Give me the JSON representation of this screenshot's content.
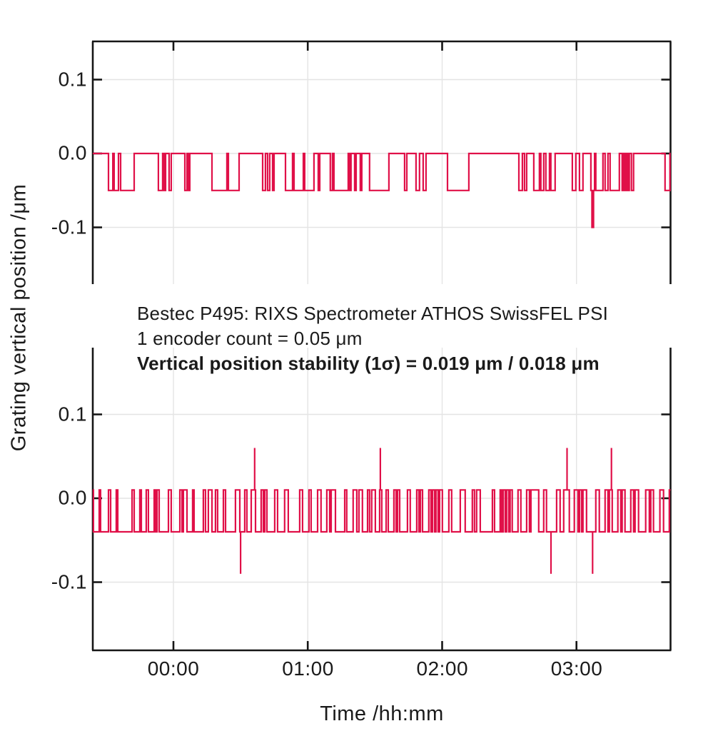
{
  "figure": {
    "y_axis_title": "Grating vertical position /μm",
    "x_axis_title": "Time /hh:mm"
  },
  "annotation": {
    "line1": "Bestec P495: RIXS Spectrometer ATHOS SwissFEL PSI",
    "line2": "1 encoder count = 0.05 μm",
    "line3": "Vertical position stability (1σ) = 0.019 μm / 0.018 μm"
  },
  "chart_data": {
    "type": "line",
    "subtype": "step-telegraph",
    "title": "Bestec P495: RIXS Spectrometer ATHOS SwissFEL PSI",
    "xlabel": "Time /hh:mm",
    "ylabel": "Grating vertical position /μm",
    "x_unit": "hours",
    "x_range": [
      -0.6,
      3.7
    ],
    "grid": true,
    "line_color": "#e01048",
    "grid_color": "#e4e4e4",
    "axis_color": "#161616",
    "x_ticks": [
      {
        "hour": 0,
        "label": "00:00"
      },
      {
        "hour": 1,
        "label": "01:00"
      },
      {
        "hour": 2,
        "label": "02:00"
      },
      {
        "hour": 3,
        "label": "03:00"
      }
    ],
    "panels": [
      {
        "name": "upper",
        "ylim": [
          -0.177,
          0.152
        ],
        "y_ticks": [
          {
            "value": 0.1,
            "label": "0.1"
          },
          {
            "value": 0.0,
            "label": "0.0"
          },
          {
            "value": -0.1,
            "label": "-0.1"
          }
        ],
        "baseline": 0.0,
        "low_level": -0.05,
        "deep_level": -0.1,
        "low_intervals": [
          [
            -0.483,
            -0.451
          ],
          [
            -0.441,
            -0.409
          ],
          [
            -0.393,
            -0.292
          ],
          [
            -0.112,
            -0.08
          ],
          [
            -0.069,
            -0.058
          ],
          [
            -0.032,
            -0.016
          ],
          [
            0.085,
            0.101
          ],
          [
            0.112,
            0.122
          ],
          [
            0.287,
            0.398
          ],
          [
            0.409,
            0.489
          ],
          [
            0.664,
            0.685
          ],
          [
            0.701,
            0.717
          ],
          [
            0.738,
            0.749
          ],
          [
            0.834,
            0.887
          ],
          [
            0.898,
            0.967
          ],
          [
            0.977,
            1.046
          ],
          [
            1.078,
            1.089
          ],
          [
            1.168,
            1.184
          ],
          [
            1.195,
            1.301
          ],
          [
            1.312,
            1.322
          ],
          [
            1.349,
            1.36
          ],
          [
            1.391,
            1.402
          ],
          [
            1.46,
            1.604
          ],
          [
            1.721,
            1.737
          ],
          [
            1.806,
            1.832
          ],
          [
            1.859,
            1.88
          ],
          [
            2.04,
            2.199
          ],
          [
            2.571,
            2.597
          ],
          [
            2.613,
            2.629
          ],
          [
            2.682,
            2.724
          ],
          [
            2.735,
            2.756
          ],
          [
            2.772,
            2.799
          ],
          [
            2.809,
            2.841
          ],
          [
            2.969,
            2.995
          ],
          [
            3.022,
            3.048
          ],
          [
            3.107,
            3.135
          ],
          [
            3.144,
            3.197
          ],
          [
            3.213,
            3.234
          ],
          [
            3.25,
            3.319
          ],
          [
            3.34,
            3.351
          ],
          [
            3.361,
            3.372
          ],
          [
            3.383,
            3.393
          ],
          [
            3.409,
            3.425
          ],
          [
            3.659,
            3.696
          ]
        ],
        "deep_intervals": [
          [
            3.115,
            3.127
          ]
        ],
        "spikes_up": {
          "level": 0,
          "hours": []
        },
        "spikes_down": {
          "level": -0.1,
          "hours": []
        }
      },
      {
        "name": "lower",
        "ylim": [
          -0.18,
          0.18
        ],
        "y_ticks": [
          {
            "value": 0.1,
            "label": "0.1"
          },
          {
            "value": 0.0,
            "label": "0.0"
          },
          {
            "value": -0.1,
            "label": "-0.1"
          }
        ],
        "baseline": 0.01,
        "low_level": -0.04,
        "deep_level": -0.09,
        "low_intervals": [
          [
            -0.595,
            -0.552
          ],
          [
            -0.542,
            -0.483
          ],
          [
            -0.467,
            -0.425
          ],
          [
            -0.414,
            -0.308
          ],
          [
            -0.292,
            -0.25
          ],
          [
            -0.239,
            -0.202
          ],
          [
            -0.186,
            -0.143
          ],
          [
            -0.133,
            -0.122
          ],
          [
            -0.106,
            -0.037
          ],
          [
            -0.016,
            0.048
          ],
          [
            0.064,
            0.074
          ],
          [
            0.101,
            0.143
          ],
          [
            0.154,
            0.223
          ],
          [
            0.239,
            0.26
          ],
          [
            0.287,
            0.313
          ],
          [
            0.329,
            0.372
          ],
          [
            0.388,
            0.462
          ],
          [
            0.494,
            0.531
          ],
          [
            0.547,
            0.579
          ],
          [
            0.611,
            0.653
          ],
          [
            0.669,
            0.68
          ],
          [
            0.696,
            0.754
          ],
          [
            0.775,
            0.828
          ],
          [
            0.855,
            0.94
          ],
          [
            0.961,
            1.009
          ],
          [
            1.025,
            1.073
          ],
          [
            1.099,
            1.142
          ],
          [
            1.163,
            1.174
          ],
          [
            1.206,
            1.275
          ],
          [
            1.29,
            1.338
          ],
          [
            1.365,
            1.381
          ],
          [
            1.407,
            1.445
          ],
          [
            1.46,
            1.476
          ],
          [
            1.503,
            1.535
          ],
          [
            1.551,
            1.583
          ],
          [
            1.599,
            1.641
          ],
          [
            1.657,
            1.668
          ],
          [
            1.684,
            1.742
          ],
          [
            1.763,
            1.811
          ],
          [
            1.827,
            1.838
          ],
          [
            1.854,
            1.901
          ],
          [
            1.917,
            1.928
          ],
          [
            1.944,
            1.954
          ],
          [
            1.97,
            1.981
          ],
          [
            2.002,
            2.05
          ],
          [
            2.071,
            2.135
          ],
          [
            2.172,
            2.225
          ],
          [
            2.241,
            2.257
          ],
          [
            2.284,
            2.374
          ],
          [
            2.39,
            2.432
          ],
          [
            2.443,
            2.454
          ],
          [
            2.469,
            2.48
          ],
          [
            2.496,
            2.506
          ],
          [
            2.522,
            2.565
          ],
          [
            2.586,
            2.629
          ],
          [
            2.65,
            2.661
          ],
          [
            2.719,
            2.756
          ],
          [
            2.777,
            2.852
          ],
          [
            2.878,
            2.905
          ],
          [
            2.947,
            2.984
          ],
          [
            3.011,
            3.022
          ],
          [
            3.038,
            3.048
          ],
          [
            3.075,
            3.144
          ],
          [
            3.17,
            3.213
          ],
          [
            3.234,
            3.245
          ],
          [
            3.266,
            3.308
          ],
          [
            3.33,
            3.34
          ],
          [
            3.361,
            3.404
          ],
          [
            3.425,
            3.436
          ],
          [
            3.462,
            3.515
          ],
          [
            3.542,
            3.553
          ],
          [
            3.573,
            3.621
          ],
          [
            3.648,
            3.691
          ]
        ],
        "deep_intervals": [],
        "spikes_up": {
          "level": 0.06,
          "hours": [
            0.605,
            1.54,
            2.93,
            3.26
          ]
        },
        "spikes_down": {
          "level": -0.09,
          "hours": [
            0.5,
            2.81,
            3.12
          ]
        }
      }
    ]
  }
}
